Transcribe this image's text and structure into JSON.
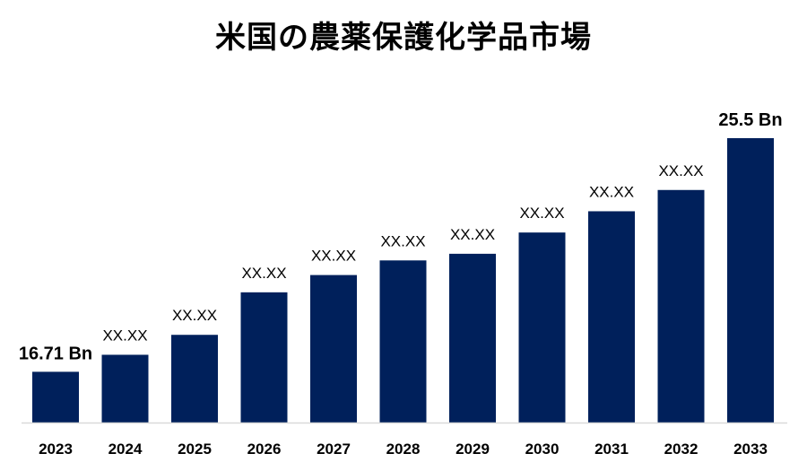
{
  "chart_data": {
    "type": "bar",
    "title": "米国の農薬保護化学品市場",
    "categories": [
      "2023",
      "2024",
      "2025",
      "2026",
      "2027",
      "2028",
      "2029",
      "2030",
      "2031",
      "2032",
      "2033"
    ],
    "values": [
      16.71,
      17.35,
      18.1,
      19.7,
      20.35,
      20.9,
      21.15,
      21.95,
      22.75,
      23.55,
      25.5
    ],
    "data_labels": [
      "16.71 Bn",
      "XX.XX",
      "XX.XX",
      "XX.XX",
      "XX.XX",
      "XX.XX",
      "XX.XX",
      "XX.XX",
      "XX.XX",
      "XX.XX",
      "25.5 Bn"
    ],
    "xlabel": "",
    "ylabel": "",
    "ylim": [
      14.8,
      26.0
    ],
    "grid": false,
    "bar_color": "#00205B",
    "axis_color": "#D9D9D9"
  }
}
